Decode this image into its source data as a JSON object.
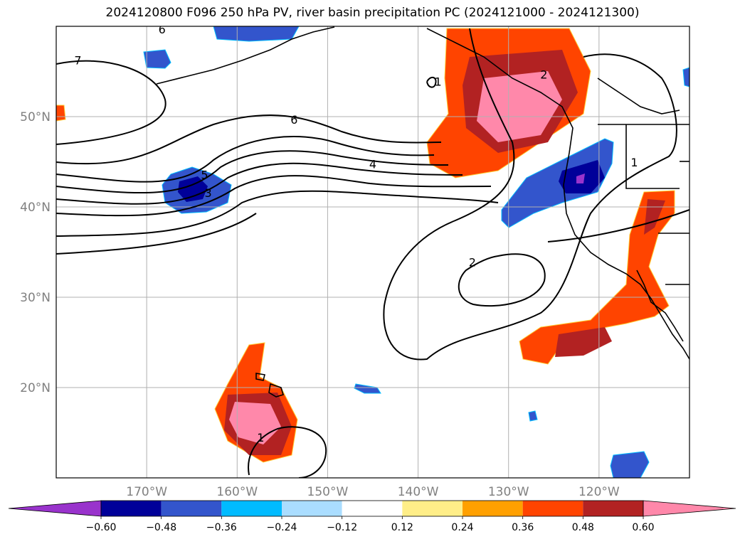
{
  "title": "2024120800 F096 250 hPa PV, river basin precipitation PC (2024121000 - 2024121300)",
  "map": {
    "projection": "equirectangular",
    "lon_range": [
      -180,
      -110
    ],
    "lat_range": [
      10,
      60
    ],
    "gridlines": true,
    "lat_labels": [
      {
        "value": 50,
        "text": "50°N"
      },
      {
        "value": 40,
        "text": "40°N"
      },
      {
        "value": 30,
        "text": "30°N"
      },
      {
        "value": 20,
        "text": "20°N"
      }
    ],
    "lon_labels": [
      {
        "value": -170,
        "text": "170°W"
      },
      {
        "value": -160,
        "text": "160°W"
      },
      {
        "value": -150,
        "text": "150°W"
      },
      {
        "value": -140,
        "text": "140°W"
      },
      {
        "value": -130,
        "text": "130°W"
      },
      {
        "value": -120,
        "text": "120°W"
      }
    ],
    "contour_labels": [
      {
        "text": "6",
        "lon": -168.3,
        "lat": 59.6
      },
      {
        "text": "7",
        "lon": -177.6,
        "lat": 56.2
      },
      {
        "text": "6",
        "lon": -153.7,
        "lat": 49.6
      },
      {
        "text": "4",
        "lon": -145.0,
        "lat": 44.7
      },
      {
        "text": "5",
        "lon": -163.6,
        "lat": 43.5
      },
      {
        "text": "3",
        "lon": -163.2,
        "lat": 41.5
      },
      {
        "text": "1",
        "lon": -137.8,
        "lat": 53.8
      },
      {
        "text": "2",
        "lon": -126.1,
        "lat": 54.6
      },
      {
        "text": "2",
        "lon": -134.0,
        "lat": 33.8
      },
      {
        "text": "1",
        "lon": -116.1,
        "lat": 44.9
      },
      {
        "text": "1",
        "lon": -157.4,
        "lat": 14.4
      }
    ]
  },
  "colorbar": {
    "colors": [
      "#9933cc",
      "#000099",
      "#3355cc",
      "#00bbff",
      "#aaddff",
      "#ffffff",
      "#ffee88",
      "#ffa000",
      "#ff4400",
      "#b22222",
      "#ff88aa"
    ],
    "tick_labels": [
      "−0.60",
      "−0.48",
      "−0.36",
      "−0.24",
      "−0.12",
      "0.12",
      "0.24",
      "0.36",
      "0.48",
      "0.60"
    ],
    "tick_values": [
      -0.6,
      -0.48,
      -0.36,
      -0.24,
      -0.12,
      0.12,
      0.24,
      0.36,
      0.48,
      0.6
    ],
    "extend": "both"
  }
}
